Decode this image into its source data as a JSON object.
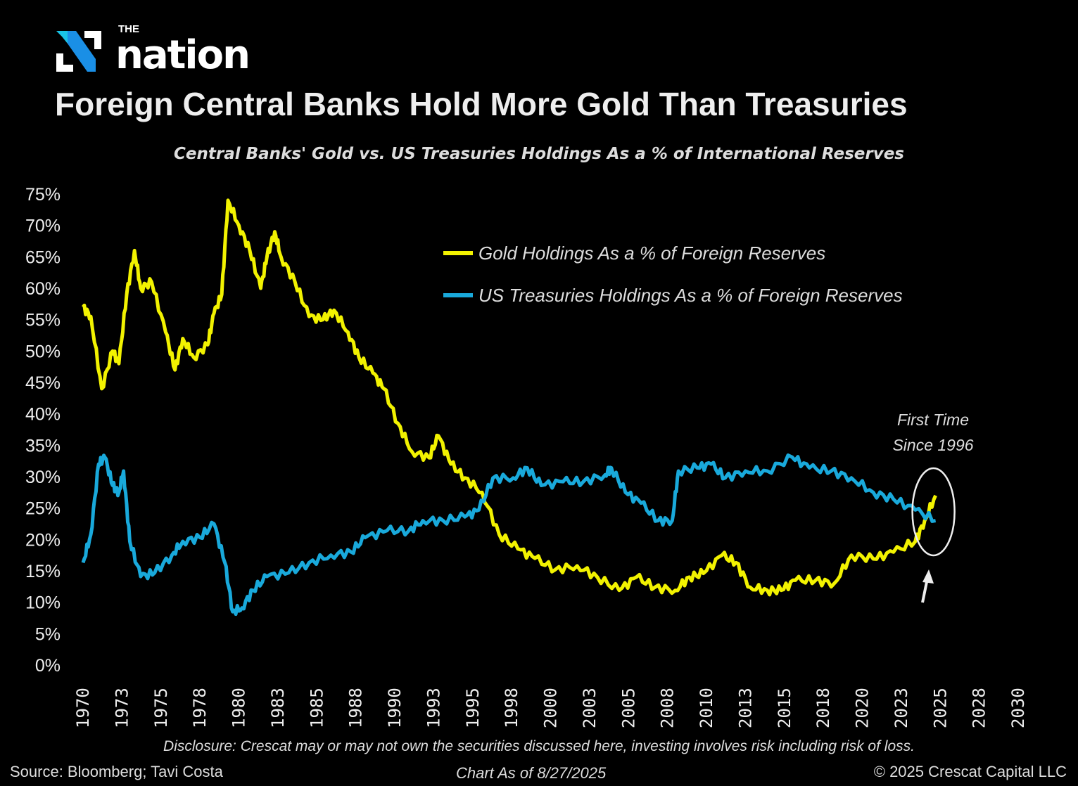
{
  "brand": {
    "logo_text_small": "THE",
    "logo_text": "nation",
    "logo_colors": [
      "#19c3e6",
      "#1a6fe0"
    ]
  },
  "header": {
    "title": "Foreign Central Banks Hold More Gold Than Treasuries",
    "subtitle": "Central Banks' Gold vs. US Treasuries Holdings As a % of International Reserves"
  },
  "chart_data": {
    "type": "line",
    "title": "Foreign Central Banks Hold More Gold Than Treasuries",
    "subtitle": "Central Banks' Gold vs. US Treasuries Holdings As a % of International Reserves",
    "xlim": [
      1970,
      2030
    ],
    "ylim": [
      0,
      75
    ],
    "y_ticks": [
      "0%",
      "5%",
      "10%",
      "15%",
      "20%",
      "25%",
      "30%",
      "35%",
      "40%",
      "45%",
      "50%",
      "55%",
      "60%",
      "65%",
      "70%",
      "75%"
    ],
    "x_tick_values": [
      1970,
      1972.5,
      1975,
      1977.5,
      1980,
      1982.5,
      1985,
      1987.5,
      1990,
      1992.5,
      1995,
      1997.5,
      2000,
      2002.5,
      2005,
      2007.5,
      2010,
      2012.5,
      2015,
      2017.5,
      2020,
      2022.5,
      2025,
      2027.5,
      2030
    ],
    "x_tick_labels": [
      "1970",
      "1973",
      "1975",
      "1978",
      "1980",
      "1983",
      "1985",
      "1988",
      "1990",
      "1993",
      "1995",
      "1998",
      "2000",
      "2003",
      "2005",
      "2008",
      "2010",
      "2013",
      "2015",
      "2018",
      "2020",
      "2023",
      "2025",
      "2028",
      "2030"
    ],
    "grid": false,
    "legend_placement": "top-right",
    "series": [
      {
        "name": "Gold Holdings As a % of Foreign Reserves",
        "color": "#f2f200",
        "x": [
          1970,
          1970.5,
          1971.2,
          1971.9,
          1972.3,
          1972.8,
          1973.3,
          1973.7,
          1974.4,
          1975.3,
          1975.9,
          1976.4,
          1977.1,
          1978,
          1978.4,
          1978.9,
          1979.3,
          1980,
          1980.7,
          1981.4,
          1981.8,
          1982.3,
          1982.7,
          1983.6,
          1984.5,
          1985.4,
          1986.1,
          1987,
          1987.7,
          1988.6,
          1989.3,
          1990.2,
          1991.1,
          1992.2,
          1992.8,
          1993.6,
          1994.5,
          1995.6,
          1996.7,
          1997.9,
          1999,
          2000.3,
          2001.7,
          2003,
          2004.4,
          2005.5,
          2006.7,
          2008,
          2008.9,
          2009.8,
          2011,
          2011.9,
          2012.8,
          2013.9,
          2014.8,
          2015.7,
          2017,
          2018.2,
          2019.3,
          2020.7,
          2022,
          2023.4,
          2024,
          2024.7
        ],
        "values": [
          57,
          55.5,
          44,
          50,
          48,
          59,
          66,
          60,
          61,
          53,
          47,
          52,
          49,
          51,
          56,
          59,
          74,
          70,
          66,
          60,
          65,
          69,
          65,
          61,
          55.5,
          55,
          56.5,
          53,
          49,
          46.5,
          44,
          38.5,
          34,
          33,
          36.5,
          32,
          29.8,
          27.5,
          20.8,
          18.5,
          17,
          15.2,
          15.8,
          14,
          11.9,
          14,
          12.4,
          11.9,
          14,
          14.6,
          17.5,
          16.3,
          12.4,
          11.9,
          11.9,
          13.5,
          13.5,
          13,
          17.5,
          16.9,
          18,
          19.7,
          23,
          27
        ]
      },
      {
        "name": "US Treasuries Holdings As a % of Foreign Reserves",
        "color": "#19a9db",
        "x": [
          1970,
          1970.5,
          1971,
          1971.4,
          1971.9,
          1972.3,
          1972.6,
          1973,
          1973.7,
          1974.6,
          1975.7,
          1976.4,
          1977.5,
          1978.4,
          1979.1,
          1979.6,
          1980.2,
          1980.9,
          1981.8,
          1983.2,
          1984.5,
          1985.9,
          1987.2,
          1988.1,
          1989.5,
          1990.9,
          1991.8,
          1993.1,
          1994.5,
          1995.4,
          1996.3,
          1997.6,
          1998.5,
          1999.4,
          2000.8,
          2002.1,
          2003.5,
          2003.9,
          2004.8,
          2005.8,
          2006.9,
          2007.8,
          2008.2,
          2009.4,
          2010.3,
          2011.2,
          2012.5,
          2013.9,
          2015.5,
          2016.6,
          2018,
          2019.3,
          2020.7,
          2022,
          2023.4,
          2024.7
        ],
        "values": [
          16.3,
          20.8,
          32,
          33.1,
          28.6,
          27.5,
          30.9,
          19.7,
          14.1,
          14.7,
          17.5,
          19.7,
          20.3,
          22.5,
          16.3,
          8.5,
          9.1,
          11.9,
          14.1,
          14.7,
          16.3,
          17.5,
          18,
          20.3,
          21.4,
          21.4,
          23,
          23,
          23.6,
          24.7,
          29.8,
          29.8,
          31.4,
          28.6,
          29.2,
          29.2,
          30.3,
          31.4,
          27.5,
          25.8,
          23,
          23,
          30.9,
          31.4,
          32,
          29.8,
          30.9,
          30.9,
          33.1,
          31.4,
          30.9,
          29.8,
          27.5,
          26.4,
          24.7,
          23
        ]
      }
    ],
    "annotation": {
      "text_line1": "First Time",
      "text_line2": "Since 1996",
      "year": 2024.7
    }
  },
  "footer": {
    "disclosure": "Disclosure: Crescat may or may not own the securities discussed here, investing involves risk including risk of loss.",
    "source": "Source: Bloomberg; Tavi Costa",
    "as_of": "Chart As of 8/27/2025",
    "copyright": "© 2025 Crescat Capital LLC"
  }
}
